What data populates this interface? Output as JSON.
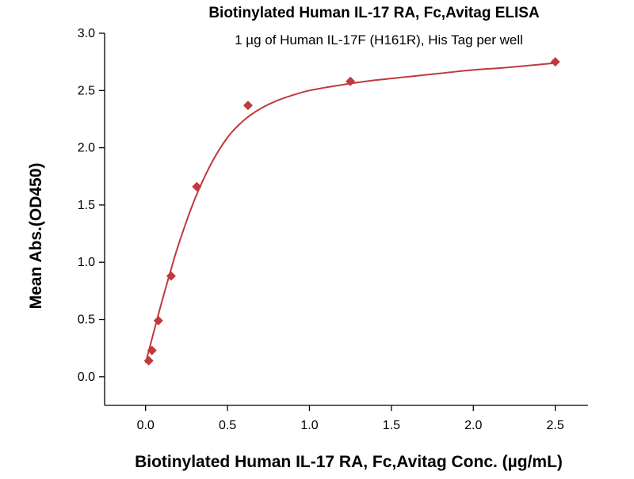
{
  "chart_data": {
    "type": "scatter",
    "title": "Biotinylated Human IL-17 RA, Fc,Avitag ELISA",
    "subtitle": "1 µg of Human IL-17F (H161R), His Tag per well",
    "xlabel": "Biotinylated Human IL-17 RA, Fc,Avitag Conc. (µg/mL)",
    "ylabel": "Mean Abs.(OD450)",
    "xlim": [
      -0.25,
      2.7
    ],
    "ylim": [
      -0.25,
      3.0
    ],
    "x_ticks": [
      "0.0",
      "0.5",
      "1.0",
      "1.5",
      "2.0",
      "2.5"
    ],
    "y_ticks": [
      "0.0",
      "0.5",
      "1.0",
      "1.5",
      "2.0",
      "2.5",
      "3.0"
    ],
    "grid": false,
    "series": [
      {
        "marker": "diamond",
        "color": "#c0393b",
        "x": [
          0.0195,
          0.039,
          0.078,
          0.156,
          0.3125,
          0.625,
          1.25,
          2.5
        ],
        "y": [
          0.14,
          0.23,
          0.49,
          0.88,
          1.66,
          2.37,
          2.58,
          2.75
        ]
      }
    ],
    "fit_curve": {
      "color": "#c0393b",
      "x": [
        0.0,
        0.05,
        0.1,
        0.15,
        0.2,
        0.3,
        0.4,
        0.5,
        0.6,
        0.7,
        0.8,
        0.9,
        1.0,
        1.2,
        1.4,
        1.6,
        1.8,
        2.0,
        2.2,
        2.5
      ],
      "y": [
        0.12,
        0.39,
        0.66,
        0.91,
        1.15,
        1.55,
        1.86,
        2.09,
        2.24,
        2.34,
        2.41,
        2.46,
        2.5,
        2.55,
        2.59,
        2.62,
        2.65,
        2.68,
        2.7,
        2.74
      ]
    }
  }
}
